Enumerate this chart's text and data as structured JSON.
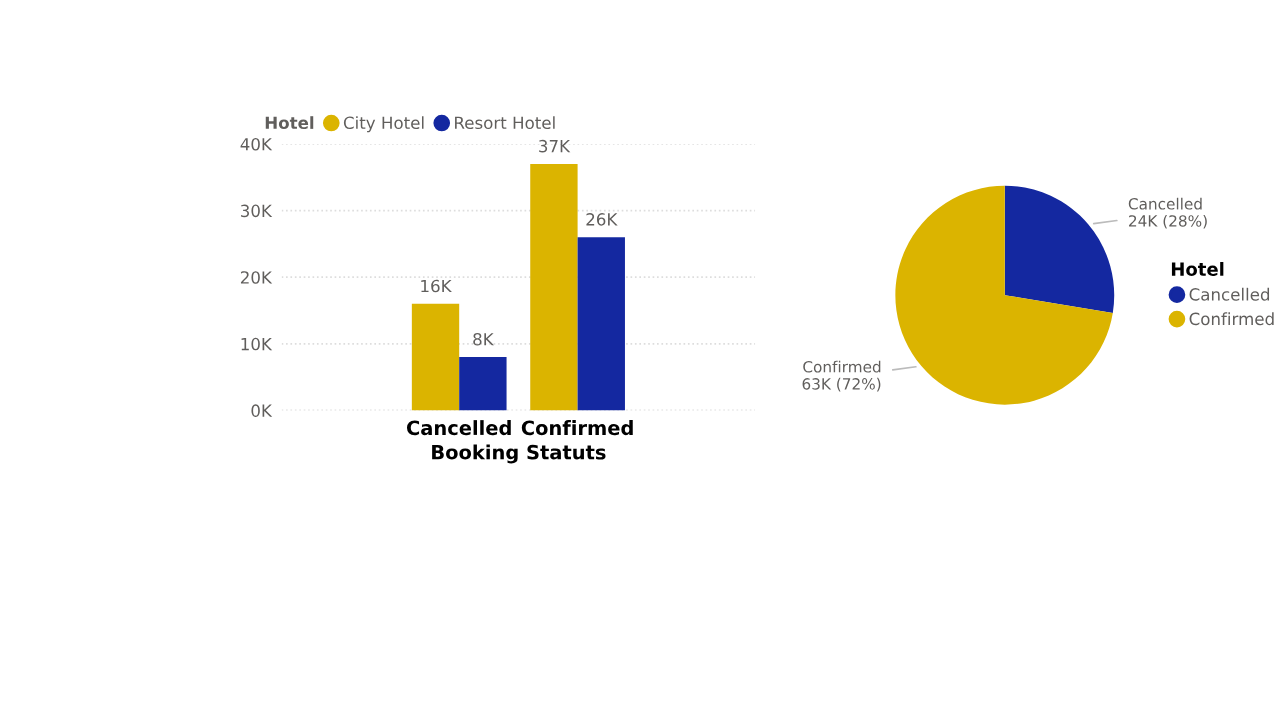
{
  "chart_data": [
    {
      "type": "bar",
      "legend_title": "Hotel",
      "xlabel": "Booking Statuts",
      "categories": [
        "Cancelled",
        "Confirmed"
      ],
      "series": [
        {
          "name": "City Hotel",
          "color": "#dbb400",
          "values": [
            16000,
            37000
          ],
          "value_labels": [
            "16K",
            "37K"
          ]
        },
        {
          "name": "Resort Hotel",
          "color": "#1428a0",
          "values": [
            8000,
            26000
          ],
          "value_labels": [
            "8K",
            "26K"
          ]
        }
      ],
      "ylim": [
        0,
        40000
      ],
      "yticks": [
        {
          "value": 0,
          "label": "0K"
        },
        {
          "value": 10000,
          "label": "10K"
        },
        {
          "value": 20000,
          "label": "20K"
        },
        {
          "value": 30000,
          "label": "30K"
        },
        {
          "value": 40000,
          "label": "40K"
        }
      ],
      "grid": "y",
      "legend": "top left"
    },
    {
      "type": "pie",
      "legend_title": "Hotel",
      "categories": [
        "Cancelled",
        "Confirmed"
      ],
      "values": [
        24000,
        63000
      ],
      "colors": [
        "#1428a0",
        "#dbb400"
      ],
      "value_labels": [
        "24K (28%)",
        "63K (72%)"
      ],
      "legend": "right"
    }
  ]
}
